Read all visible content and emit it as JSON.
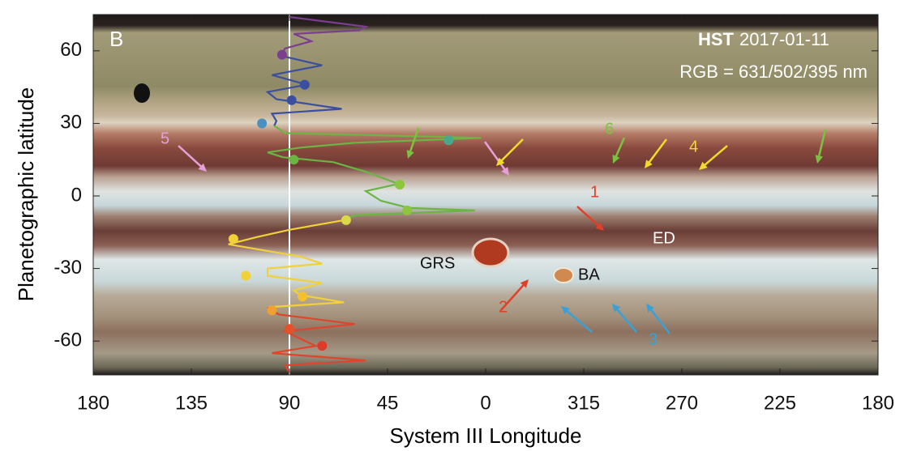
{
  "chart_data": {
    "type": "line",
    "xlabel": "System III Longitude",
    "ylabel": "Planetographic latitude",
    "xlim": [
      180,
      -180
    ],
    "xticks": [
      180,
      135,
      90,
      45,
      0,
      {
        "value": -45,
        "label": "315"
      },
      {
        "value": -90,
        "label": "270"
      },
      {
        "value": -135,
        "label": "225"
      },
      {
        "value": -180,
        "label": "180"
      }
    ],
    "ylim": [
      -74,
      75
    ],
    "yticks": [
      -60,
      -30,
      0,
      30,
      60
    ],
    "reference_x": 90,
    "series": [
      {
        "color": "#7b3f8f",
        "x": [
          90,
          55,
          58,
          88,
          80,
          92,
          94
        ],
        "values": [
          74,
          70,
          68.5,
          67,
          64,
          61,
          58
        ]
      },
      {
        "color": "#3b4fa0",
        "x": [
          94,
          75,
          98,
          82,
          100,
          96,
          66,
          98,
          96,
          97
        ],
        "values": [
          58,
          54,
          50,
          46,
          43,
          40,
          36,
          34,
          31,
          29
        ]
      },
      {
        "color": "#6bb544",
        "x": [
          97,
          92,
          2,
          60,
          85,
          100,
          93,
          70,
          55,
          40,
          55,
          48,
          35,
          5,
          60,
          65
        ],
        "values": [
          29,
          26,
          24,
          22,
          20,
          18,
          16,
          14,
          10,
          5,
          2,
          -2,
          -5,
          -6,
          -8,
          -10
        ]
      },
      {
        "color": "#f1d13a",
        "x": [
          65,
          90,
          105,
          118,
          105,
          85,
          75,
          100,
          100,
          75,
          88,
          85,
          65,
          100
        ],
        "values": [
          -10,
          -14,
          -17,
          -20,
          -22,
          -25,
          -28,
          -30,
          -33,
          -36,
          -39,
          -41,
          -44,
          -46
        ]
      },
      {
        "color": "#e0452c",
        "x": [
          100,
          95,
          60,
          92,
          85,
          78,
          98,
          55,
          92,
          90
        ],
        "values": [
          -46,
          -49,
          -53,
          -56,
          -59,
          -62,
          -65,
          -68,
          -70,
          -73
        ]
      }
    ],
    "markers": {
      "x": [
        93.4,
        83,
        89,
        102.6,
        17,
        88,
        39.4,
        36,
        64,
        115.7,
        110,
        84,
        98,
        90,
        75
      ],
      "values": [
        58.4,
        46,
        39.6,
        30,
        23,
        15,
        4.7,
        -6,
        -10,
        -17.8,
        -33,
        -41.6,
        -47.3,
        -55,
        -62
      ],
      "colors": [
        "#7b3f8f",
        "#3b4fa0",
        "#3b4fa0",
        "#4a90c0",
        "#4aa88a",
        "#6bb544",
        "#8cc63f",
        "#8cc63f",
        "#d8d84a",
        "#f1d13a",
        "#f1d13a",
        "#f5c030",
        "#f0a030",
        "#e8502a",
        "#e03a2a"
      ]
    },
    "annotations": [
      {
        "text": "B",
        "color": "#ffffff"
      },
      {
        "text": "HST",
        "color": "#ffffff"
      },
      {
        "text": "2017-01-11",
        "color": "#ffffff"
      },
      {
        "text": "RGB = 631/502/395 nm",
        "color": "#ffffff"
      },
      {
        "text": "GRS",
        "color": "#111111"
      },
      {
        "text": "BA",
        "color": "#111111"
      },
      {
        "text": "ED",
        "color": "#ffffff"
      },
      {
        "text": "1",
        "color": "#e0402a"
      },
      {
        "text": "2",
        "color": "#e0402a"
      },
      {
        "text": "3",
        "color": "#3aa0d8"
      },
      {
        "text": "4",
        "color": "#f2dc2a"
      },
      {
        "text": "5",
        "color": "#e6a0d8"
      },
      {
        "text": "6",
        "color": "#7cc242"
      }
    ]
  }
}
